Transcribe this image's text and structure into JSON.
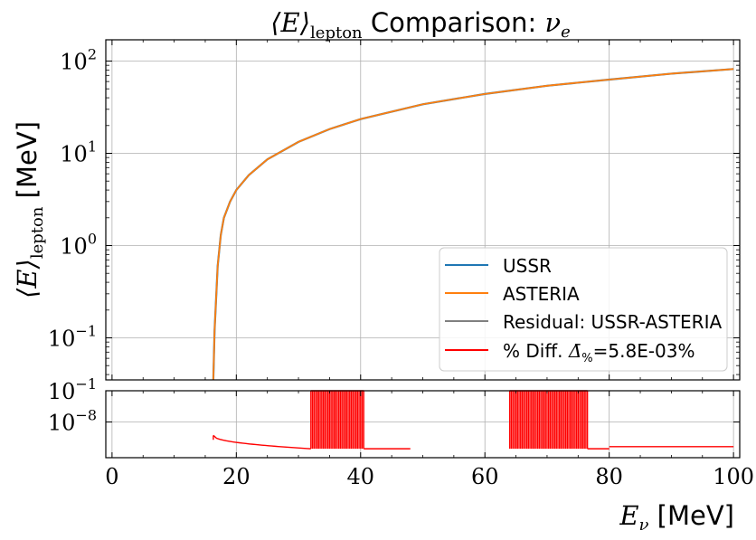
{
  "chart_data": [
    {
      "type": "line",
      "panel": "main",
      "title": "⟨E⟩lepton Comparison: νe",
      "title_parts": {
        "sym_prefix": "⟨E⟩",
        "sym_sub": "lepton",
        "text": " Comparison: ",
        "nu": "ν",
        "nu_sub": "e"
      },
      "ylabel_parts": {
        "sym": "⟨E⟩",
        "sub": "lepton",
        "unit": " [MeV]"
      },
      "yscale": "log",
      "xlim": [
        -1,
        101
      ],
      "ylim": [
        0.035,
        170
      ],
      "grid": true,
      "yticks": [
        {
          "value": 0.1,
          "base": "10",
          "exp": "−1"
        },
        {
          "value": 1,
          "base": "10",
          "exp": "0"
        },
        {
          "value": 10,
          "base": "10",
          "exp": "1"
        },
        {
          "value": 100,
          "base": "10",
          "exp": "2"
        }
      ],
      "threshold": 16.3,
      "series": [
        {
          "name": "USSR",
          "color": "#1f77b4",
          "x": [
            16.3,
            16.5,
            17,
            17.5,
            18,
            19,
            20,
            22,
            25,
            30,
            35,
            40,
            50,
            60,
            70,
            80,
            90,
            100
          ],
          "y": [
            0.035,
            0.12,
            0.6,
            1.3,
            2.0,
            3.0,
            4.0,
            5.8,
            8.6,
            13.3,
            18.3,
            23.5,
            34,
            44,
            54,
            63,
            73,
            82
          ]
        },
        {
          "name": "ASTERIA",
          "color": "#ff7f0e",
          "x": [
            16.3,
            16.5,
            17,
            17.5,
            18,
            19,
            20,
            22,
            25,
            30,
            35,
            40,
            50,
            60,
            70,
            80,
            90,
            100
          ],
          "y": [
            0.035,
            0.12,
            0.6,
            1.3,
            2.0,
            3.0,
            4.0,
            5.8,
            8.6,
            13.3,
            18.3,
            23.5,
            34,
            44,
            54,
            63,
            73,
            82
          ]
        }
      ],
      "legend": {
        "placement": "lower-right",
        "entries": [
          {
            "label": "USSR",
            "color": "#1f77b4"
          },
          {
            "label": "ASTERIA",
            "color": "#ff7f0e"
          },
          {
            "label": "Residual: USSR-ASTERIA",
            "color": "#808080"
          },
          {
            "label_prefix": "% Diff. ",
            "label_sym": "Δ̄",
            "label_sub": "%",
            "label_suffix": "=5.8E-03%",
            "color": "#ff0000"
          }
        ]
      }
    },
    {
      "type": "line",
      "panel": "residual",
      "yscale": "log",
      "xlabel_parts": {
        "sym": "E",
        "sub": "ν",
        "unit": " [MeV]"
      },
      "xlim": [
        -1,
        101
      ],
      "ylim": [
        1e-16,
        0.1
      ],
      "grid": true,
      "xticks": [
        0,
        20,
        40,
        60,
        80,
        100
      ],
      "yticks": [
        {
          "value": 0.1,
          "base": "10",
          "exp": "−1"
        },
        {
          "value": 1e-08,
          "base": "10",
          "exp": "−8"
        }
      ],
      "series": [
        {
          "name": "% Diff.",
          "color": "#ff0000",
          "segments": [
            {
              "x_start": 16.3,
              "x_end": 32,
              "y_start": 1e-11,
              "y_end": 1e-14
            },
            {
              "x_start": 32,
              "x_end": 40.5,
              "spike_max": 0.1,
              "base": 1e-14,
              "spacing": 0.25
            },
            {
              "x_start": 40.5,
              "x_end": 48,
              "y_start": 1e-14,
              "y_end": 1e-14
            },
            {
              "x_start": 64,
              "x_end": 76.5,
              "spike_max": 0.1,
              "base": 1e-14,
              "spacing": 0.25
            },
            {
              "x_start": 76.5,
              "x_end": 80,
              "y_start": 1e-14,
              "y_end": 1e-14
            },
            {
              "x_start": 80,
              "x_end": 100,
              "y_start": 3e-14,
              "y_end": 3e-14
            }
          ]
        }
      ]
    }
  ]
}
